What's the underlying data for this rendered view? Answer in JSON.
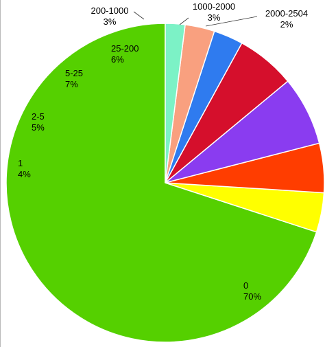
{
  "chart_data": {
    "type": "pie",
    "start": "top",
    "direction": "counterclockwise",
    "slices": [
      {
        "name": "0",
        "label": "70%",
        "value": 70,
        "color": "#55d000"
      },
      {
        "name": "1",
        "label": "4%",
        "value": 4,
        "color": "#ffff00"
      },
      {
        "name": "2-5",
        "label": "5%",
        "value": 5,
        "color": "#ff3d00"
      },
      {
        "name": "5-25",
        "label": "7%",
        "value": 7,
        "color": "#8a3cf0"
      },
      {
        "name": "25-200",
        "label": "6%",
        "value": 6,
        "color": "#d50f2c"
      },
      {
        "name": "200-1000",
        "label": "3%",
        "value": 3,
        "color": "#2f7bef"
      },
      {
        "name": "1000-2000",
        "label": "3%",
        "value": 3,
        "color": "#f9a07f"
      },
      {
        "name": "2000-2504",
        "label": "2%",
        "value": 2,
        "color": "#7cf2c6"
      }
    ]
  }
}
